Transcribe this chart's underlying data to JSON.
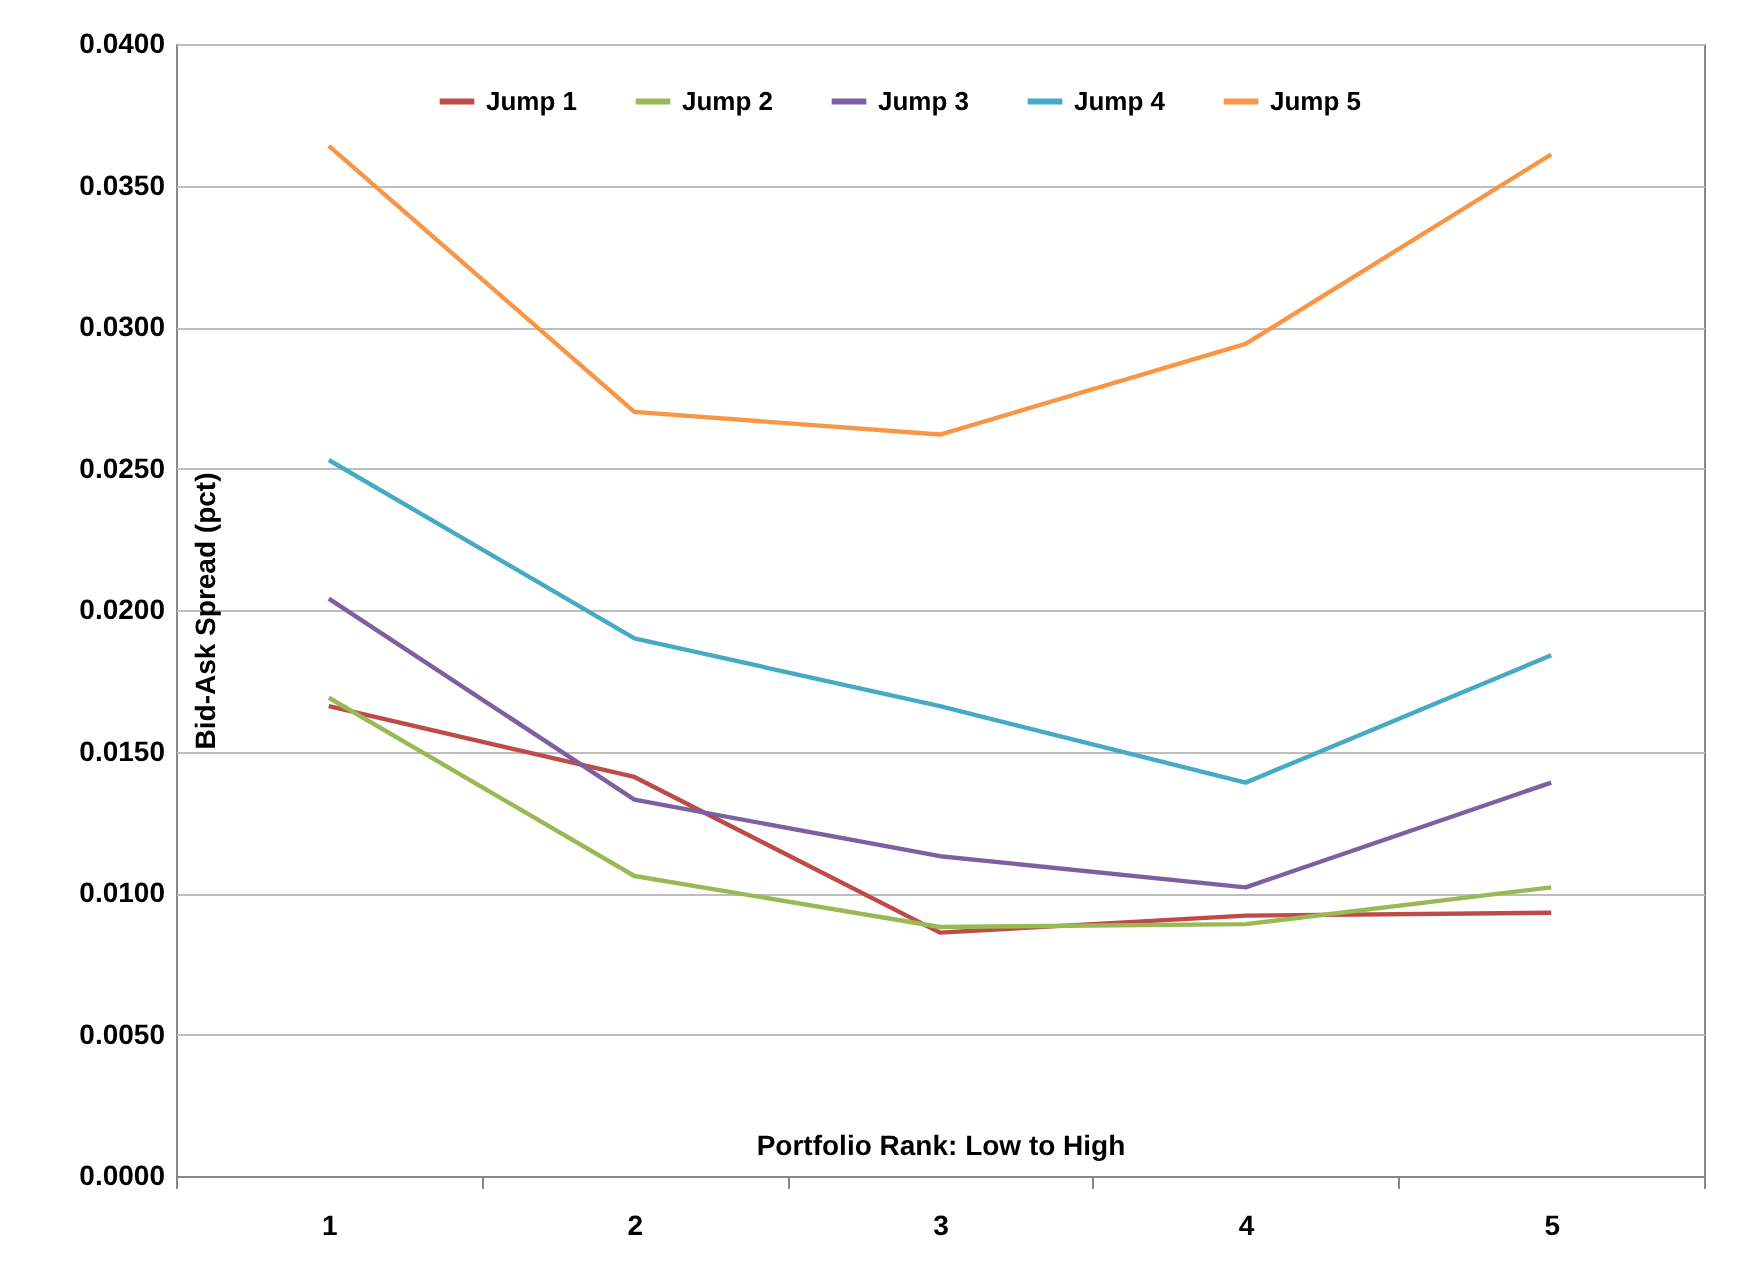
{
  "chart_data": {
    "type": "line",
    "xlabel": "Portfolio Rank: Low to High",
    "ylabel": "Bid-Ask Spread (pct)",
    "categories": [
      "1",
      "2",
      "3",
      "4",
      "5"
    ],
    "series": [
      {
        "name": "Jump 1",
        "color": "#be4b48",
        "values": [
          0.0166,
          0.0141,
          0.0086,
          0.0092,
          0.0093
        ]
      },
      {
        "name": "Jump 2",
        "color": "#98b954",
        "values": [
          0.0169,
          0.0106,
          0.0088,
          0.0089,
          0.0102
        ]
      },
      {
        "name": "Jump 3",
        "color": "#7d60a0",
        "values": [
          0.0204,
          0.0133,
          0.0113,
          0.0102,
          0.0139
        ]
      },
      {
        "name": "Jump 4",
        "color": "#46aac5",
        "values": [
          0.0253,
          0.019,
          0.0166,
          0.0139,
          0.0184
        ]
      },
      {
        "name": "Jump 5",
        "color": "#f79646",
        "values": [
          0.0364,
          0.027,
          0.0262,
          0.0294,
          0.0361
        ]
      }
    ],
    "ylim": [
      0,
      0.04
    ],
    "yticks": [
      {
        "value": 0,
        "label": "0.0000"
      },
      {
        "value": 0.005,
        "label": "0.0050"
      },
      {
        "value": 0.01,
        "label": "0.0100"
      },
      {
        "value": 0.015,
        "label": "0.0150"
      },
      {
        "value": 0.02,
        "label": "0.0200"
      },
      {
        "value": 0.025,
        "label": "0.0250"
      },
      {
        "value": 0.03,
        "label": "0.0300"
      },
      {
        "value": 0.035,
        "label": "0.0350"
      },
      {
        "value": 0.04,
        "label": "0.0400"
      }
    ],
    "grid": "y",
    "legend": "top",
    "marker": "none",
    "line_style": "solid"
  }
}
